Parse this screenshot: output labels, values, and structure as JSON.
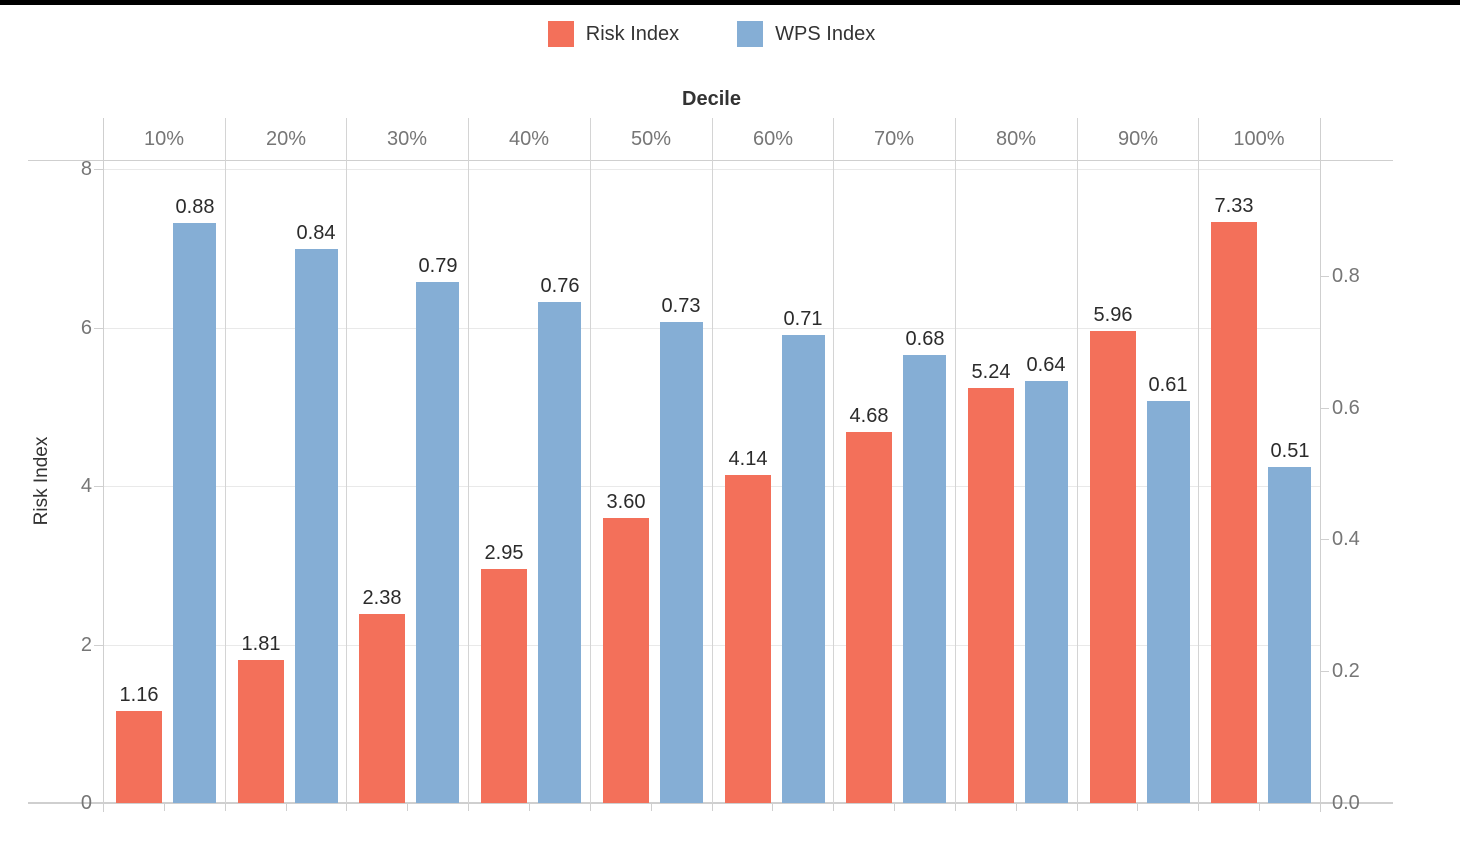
{
  "page": {
    "background": "#ffffff",
    "top_bar_color": "#000000"
  },
  "legend": {
    "items": [
      {
        "label": "Risk Index",
        "color": "#f3705a"
      },
      {
        "label": "WPS Index",
        "color": "#85aed5"
      }
    ]
  },
  "chart_data": {
    "type": "bar",
    "title": "Decile",
    "xlabel": "Decile",
    "ylabel_left": "Risk Index",
    "categories": [
      "10%",
      "20%",
      "30%",
      "40%",
      "50%",
      "60%",
      "70%",
      "80%",
      "90%",
      "100%"
    ],
    "series": [
      {
        "name": "Risk Index",
        "axis": "left",
        "color": "#f3705a",
        "values": [
          1.16,
          1.81,
          2.38,
          2.95,
          3.6,
          4.14,
          4.68,
          5.24,
          5.96,
          7.33
        ],
        "labels": [
          "1.16",
          "1.81",
          "2.38",
          "2.95",
          "3.60",
          "4.14",
          "4.68",
          "5.24",
          "5.96",
          "7.33"
        ]
      },
      {
        "name": "WPS Index",
        "axis": "right",
        "color": "#85aed5",
        "values": [
          0.88,
          0.84,
          0.79,
          0.76,
          0.73,
          0.71,
          0.68,
          0.64,
          0.61,
          0.51
        ],
        "labels": [
          "0.88",
          "0.84",
          "0.79",
          "0.76",
          "0.73",
          "0.71",
          "0.68",
          "0.64",
          "0.61",
          "0.51"
        ]
      }
    ],
    "left_axis": {
      "title": "Risk Index",
      "tick_labels": [
        "0",
        "2",
        "4",
        "6",
        "8"
      ],
      "tick_values": [
        0,
        2,
        4,
        6,
        8
      ],
      "range": [
        0,
        8.11
      ]
    },
    "right_axis": {
      "tick_labels": [
        "0.0",
        "0.2",
        "0.4",
        "0.6",
        "0.8"
      ],
      "tick_values": [
        0,
        0.2,
        0.4,
        0.6,
        0.8
      ],
      "range": [
        0,
        0.976
      ]
    },
    "grid": true,
    "legend_position": "top"
  }
}
